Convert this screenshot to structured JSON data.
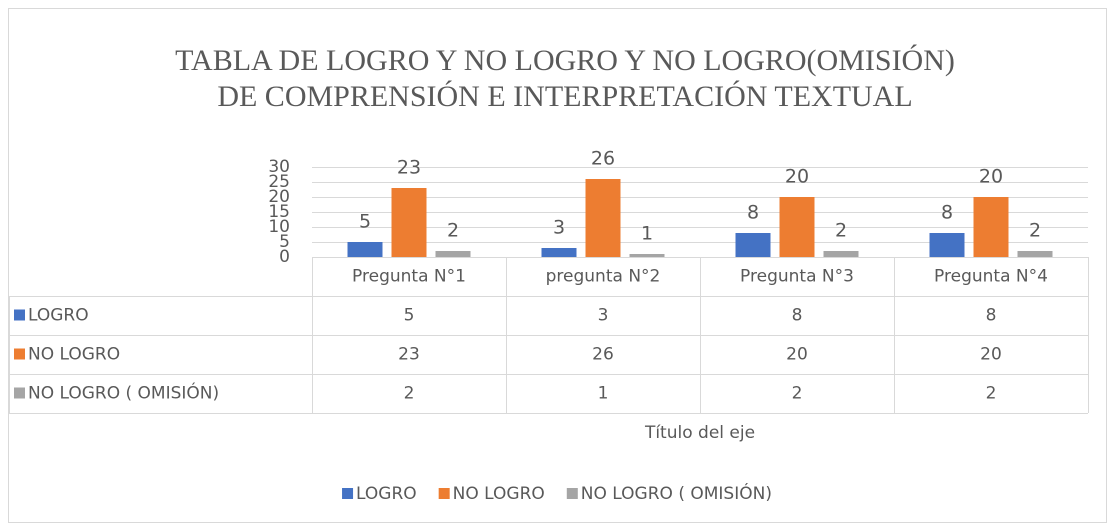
{
  "chart_data": {
    "type": "bar",
    "title": [
      "TABLA DE LOGRO Y NO LOGRO Y NO LOGRO(OMISIÓN)",
      "DE COMPRENSIÓN E INTERPRETACIÓN TEXTUAL"
    ],
    "categories": [
      "Pregunta N°1",
      "pregunta N°2",
      "Pregunta N°3",
      "Pregunta N°4"
    ],
    "series": [
      {
        "name": "LOGRO",
        "color": "#4472c4",
        "values": [
          5,
          3,
          8,
          8
        ]
      },
      {
        "name": "NO LOGRO",
        "color": "#ed7d31",
        "values": [
          23,
          26,
          20,
          20
        ]
      },
      {
        "name": "NO LOGRO ( OMISIÓN)",
        "color": "#a5a5a5",
        "values": [
          2,
          1,
          2,
          2
        ]
      }
    ],
    "x_label": "Título del eje",
    "ylim": [
      0,
      30
    ],
    "yticks": [
      0,
      5,
      10,
      15,
      20,
      25,
      30
    ],
    "grid": true,
    "data_table": true,
    "legend": "bottom"
  }
}
